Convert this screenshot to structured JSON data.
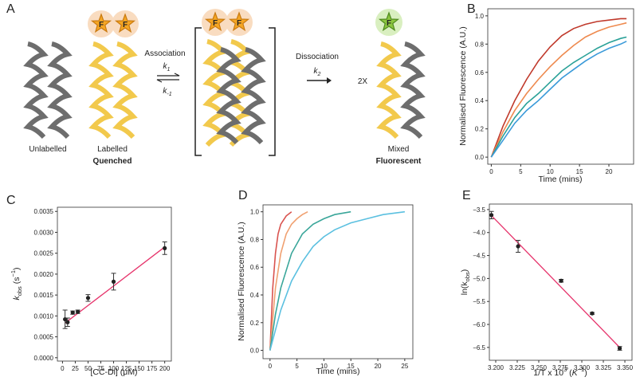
{
  "diagram": {
    "panel": "A",
    "unlabelled": "Unlabelled",
    "labelled": "Labelled",
    "quenched": "Quenched",
    "association": "Association",
    "k1": [
      "k",
      "1"
    ],
    "k_minus1": [
      "k",
      "-1"
    ],
    "dissociation": "Dissociation",
    "k2": [
      "k",
      "2"
    ],
    "times": "2X",
    "mixed": "Mixed",
    "fluorescent": "Fluorescent",
    "fluorophore": "F"
  },
  "chart_data": [
    {
      "panel": "B",
      "type": "line",
      "xlabel": "Time (mins)",
      "ylabel": "Normalised Fluorescence (A.U.)",
      "xlim": [
        -0.6,
        24.2
      ],
      "ylim": [
        -0.05,
        1.05
      ],
      "xticks": [
        0,
        5,
        10,
        15,
        20
      ],
      "yticks": [
        {
          "value": 0,
          "label": "0.0"
        },
        {
          "value": 0.2,
          "label": "0.2"
        },
        {
          "value": 0.4,
          "label": "0.4"
        },
        {
          "value": 0.6,
          "label": "0.6"
        },
        {
          "value": 0.8,
          "label": "0.8"
        },
        {
          "value": 1,
          "label": "1.0"
        }
      ],
      "x": [
        0,
        2,
        4,
        6,
        8,
        10,
        12,
        14,
        16,
        18,
        20,
        22,
        23
      ],
      "series": [
        {
          "color": "#c0392b",
          "values": [
            0,
            0.22,
            0.4,
            0.55,
            0.68,
            0.78,
            0.86,
            0.91,
            0.94,
            0.96,
            0.97,
            0.98,
            0.98
          ]
        },
        {
          "color": "#ee8a4f",
          "values": [
            0,
            0.18,
            0.33,
            0.45,
            0.55,
            0.64,
            0.72,
            0.79,
            0.85,
            0.89,
            0.92,
            0.94,
            0.95
          ]
        },
        {
          "color": "#2aa198",
          "values": [
            0,
            0.15,
            0.28,
            0.38,
            0.45,
            0.53,
            0.61,
            0.67,
            0.72,
            0.77,
            0.81,
            0.84,
            0.85
          ]
        },
        {
          "color": "#3a9ad9",
          "values": [
            0,
            0.12,
            0.24,
            0.33,
            0.4,
            0.48,
            0.56,
            0.62,
            0.68,
            0.73,
            0.77,
            0.8,
            0.82
          ]
        }
      ]
    },
    {
      "panel": "C",
      "type": "scatter",
      "xlabel": "[CC-Di] (μM)",
      "ylabel": [
        "k",
        "obs",
        " (s",
        "−1",
        ")"
      ],
      "xlim": [
        -10,
        213
      ],
      "ylim": [
        -8e-05,
        0.0036
      ],
      "xticks": [
        0,
        25,
        50,
        75,
        100,
        125,
        150,
        175,
        200
      ],
      "yticks": [
        {
          "value": 0,
          "label": "0.0000"
        },
        {
          "value": 0.0005,
          "label": "0.0005"
        },
        {
          "value": 0.001,
          "label": "0.0010"
        },
        {
          "value": 0.0015,
          "label": "0.0015"
        },
        {
          "value": 0.002,
          "label": "0.0020"
        },
        {
          "value": 0.0025,
          "label": "0.0025"
        },
        {
          "value": 0.003,
          "label": "0.0030"
        },
        {
          "value": 0.0035,
          "label": "0.0035"
        }
      ],
      "x": [
        5,
        10,
        20,
        30,
        50,
        100,
        200
      ],
      "values": [
        0.00092,
        0.00085,
        0.00108,
        0.0011,
        0.00143,
        0.00182,
        0.00262
      ],
      "errors": [
        0.00022,
        0.0001,
        4e-05,
        4e-05,
        8e-05,
        0.0002,
        0.00015
      ],
      "color": "#222222",
      "fit": {
        "color": "#e6336b",
        "x": [
          5,
          200
        ],
        "values": [
          0.00083,
          0.00265
        ]
      }
    },
    {
      "panel": "D",
      "type": "line",
      "xlabel": "Time (mins)",
      "ylabel": "Normalised Fluorescence (A.U.)",
      "xlim": [
        -1.3,
        26.5
      ],
      "ylim": [
        -0.06,
        1.05
      ],
      "xticks": [
        0,
        5,
        10,
        15,
        20,
        25
      ],
      "yticks": [
        {
          "value": 0,
          "label": "0.0"
        },
        {
          "value": 0.2,
          "label": "0.2"
        },
        {
          "value": 0.4,
          "label": "0.4"
        },
        {
          "value": 0.6,
          "label": "0.6"
        },
        {
          "value": 0.8,
          "label": "0.8"
        },
        {
          "value": 1,
          "label": "1.0"
        }
      ],
      "series": [
        {
          "color": "#d9534f",
          "x": [
            0,
            0.5,
            1,
            1.5,
            2,
            3,
            4
          ],
          "values": [
            0,
            0.45,
            0.7,
            0.84,
            0.91,
            0.97,
            1.0
          ]
        },
        {
          "color": "#f0a070",
          "x": [
            0,
            1,
            2,
            3,
            4,
            5,
            6,
            7
          ],
          "values": [
            0,
            0.45,
            0.7,
            0.84,
            0.91,
            0.95,
            0.98,
            1.0
          ]
        },
        {
          "color": "#3aa69a",
          "x": [
            0,
            1,
            2,
            4,
            6,
            8,
            10,
            12,
            15
          ],
          "values": [
            0,
            0.26,
            0.45,
            0.7,
            0.84,
            0.91,
            0.95,
            0.98,
            1.0
          ]
        },
        {
          "color": "#5bc0e0",
          "x": [
            0,
            2,
            4,
            6,
            8,
            10,
            12,
            15,
            18,
            21,
            25
          ],
          "values": [
            0,
            0.29,
            0.5,
            0.64,
            0.75,
            0.82,
            0.87,
            0.92,
            0.95,
            0.98,
            1.0
          ]
        }
      ]
    },
    {
      "panel": "E",
      "type": "scatter",
      "xlabel": [
        "1/T x 10",
        "3",
        " (",
        "K",
        "−1",
        ")"
      ],
      "ylabel": [
        "ln(k",
        "obs",
        ")"
      ],
      "xlim": [
        3.1926,
        3.3583
      ],
      "ylim": [
        -6.78,
        -3.38
      ],
      "xticks": [
        {
          "value": 3.2,
          "label": "3.200"
        },
        {
          "value": 3.225,
          "label": "3.225"
        },
        {
          "value": 3.25,
          "label": "3.250"
        },
        {
          "value": 3.275,
          "label": "3.275"
        },
        {
          "value": 3.3,
          "label": "3.300"
        },
        {
          "value": 3.325,
          "label": "3.325"
        },
        {
          "value": 3.35,
          "label": "3.350"
        }
      ],
      "yticks": [
        {
          "value": -3.5,
          "label": "−3.5"
        },
        {
          "value": -4,
          "label": "−4.0"
        },
        {
          "value": -4.5,
          "label": "−4.5"
        },
        {
          "value": -5,
          "label": "−5.0"
        },
        {
          "value": -5.5,
          "label": "−5.5"
        },
        {
          "value": -6,
          "label": "−6.0"
        },
        {
          "value": -6.5,
          "label": "−6.5"
        }
      ],
      "x": [
        3.195,
        3.226,
        3.276,
        3.312,
        3.344
      ],
      "values": [
        -3.62,
        -4.3,
        -5.05,
        -5.76,
        -6.52
      ],
      "errors": [
        0.08,
        0.13,
        0.03,
        0.02,
        0.04
      ],
      "color": "#222222",
      "fit": {
        "color": "#e6336b",
        "x": [
          3.195,
          3.345
        ],
        "values": [
          -3.63,
          -6.52
        ]
      }
    }
  ]
}
